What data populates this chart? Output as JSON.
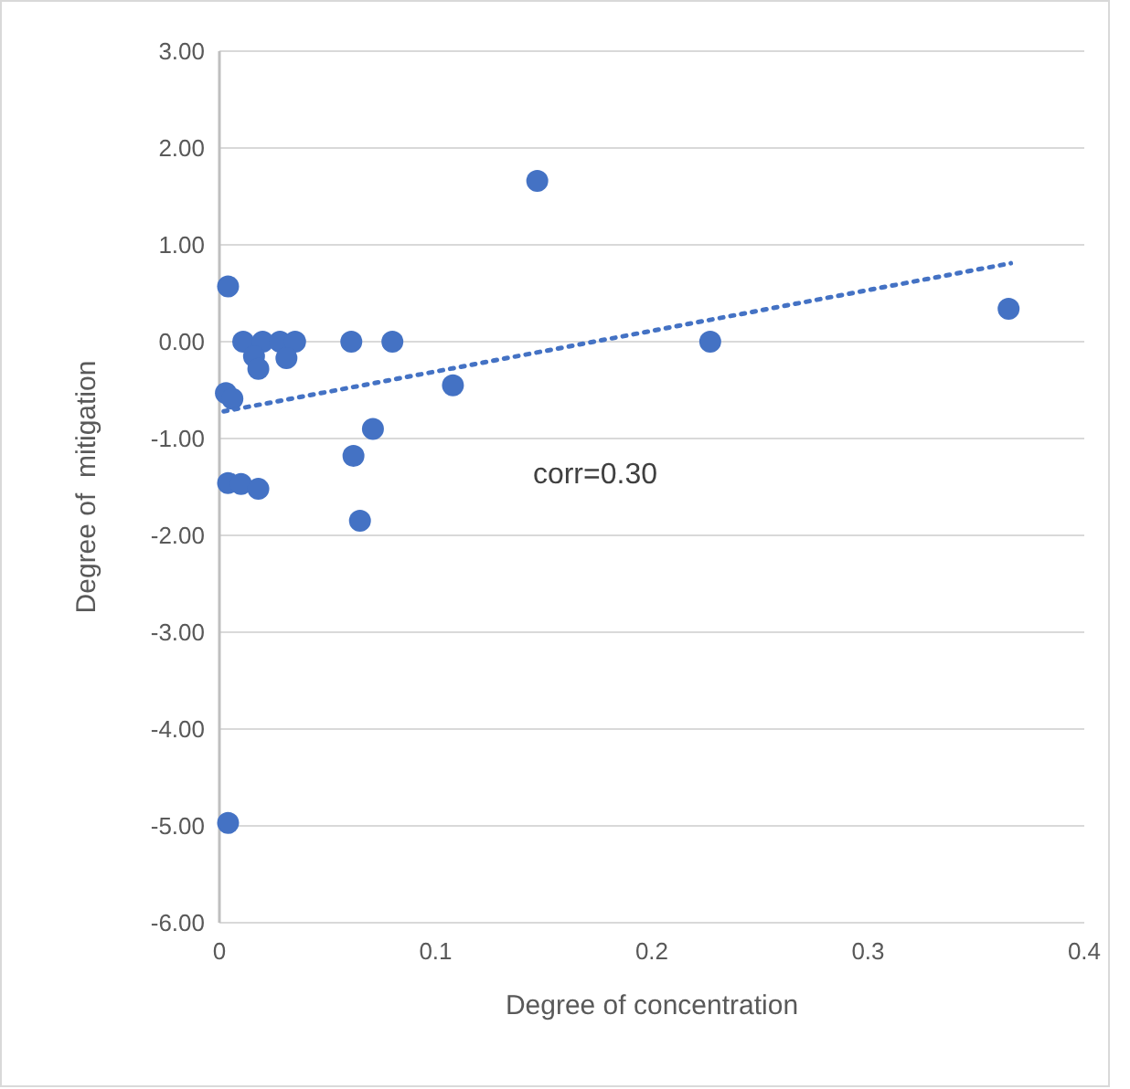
{
  "chart_data": {
    "type": "scatter",
    "xlabel": "Degree of concentration",
    "ylabel": "Degree of  mitigation",
    "annotations": [
      "corr=0.30"
    ],
    "xlim": [
      0,
      0.4
    ],
    "xticks": [
      0,
      0.1,
      0.2,
      0.3,
      0.4
    ],
    "ylim": [
      -6,
      3
    ],
    "yticks": [
      {
        "value": 3,
        "label": "3.00"
      },
      {
        "value": 2,
        "label": "2.00"
      },
      {
        "value": 1,
        "label": "1.00"
      },
      {
        "value": 0,
        "label": "0.00"
      },
      {
        "value": -1,
        "label": "-1.00"
      },
      {
        "value": -2,
        "label": "-2.00"
      },
      {
        "value": -3,
        "label": "-3.00"
      },
      {
        "value": -4,
        "label": "-4.00"
      },
      {
        "value": -5,
        "label": "-5.00"
      },
      {
        "value": -6,
        "label": "-6.00"
      }
    ],
    "grid": "y",
    "marker": "circle",
    "series": [
      {
        "color": "#4472c4",
        "x": [
          0.004,
          0.011,
          0.02,
          0.028,
          0.035,
          0.016,
          0.018,
          0.031,
          0.061,
          0.08,
          0.003,
          0.006,
          0.108,
          0.071,
          0.062,
          0.004,
          0.01,
          0.018,
          0.065,
          0.147,
          0.227,
          0.365,
          0.004
        ],
        "values": [
          0.57,
          0,
          0,
          0,
          0,
          -0.15,
          -0.28,
          -0.17,
          0,
          0,
          -0.53,
          -0.59,
          -0.45,
          -0.9,
          -1.18,
          -1.46,
          -1.47,
          -1.52,
          -1.85,
          1.66,
          0,
          0.34,
          -4.97
        ]
      },
      {
        "type": "line",
        "color": "#4472c4",
        "line_style": "dotted",
        "marker": "none",
        "x": [
          0.002,
          0.366
        ],
        "values": [
          -0.72,
          0.81
        ]
      }
    ]
  }
}
